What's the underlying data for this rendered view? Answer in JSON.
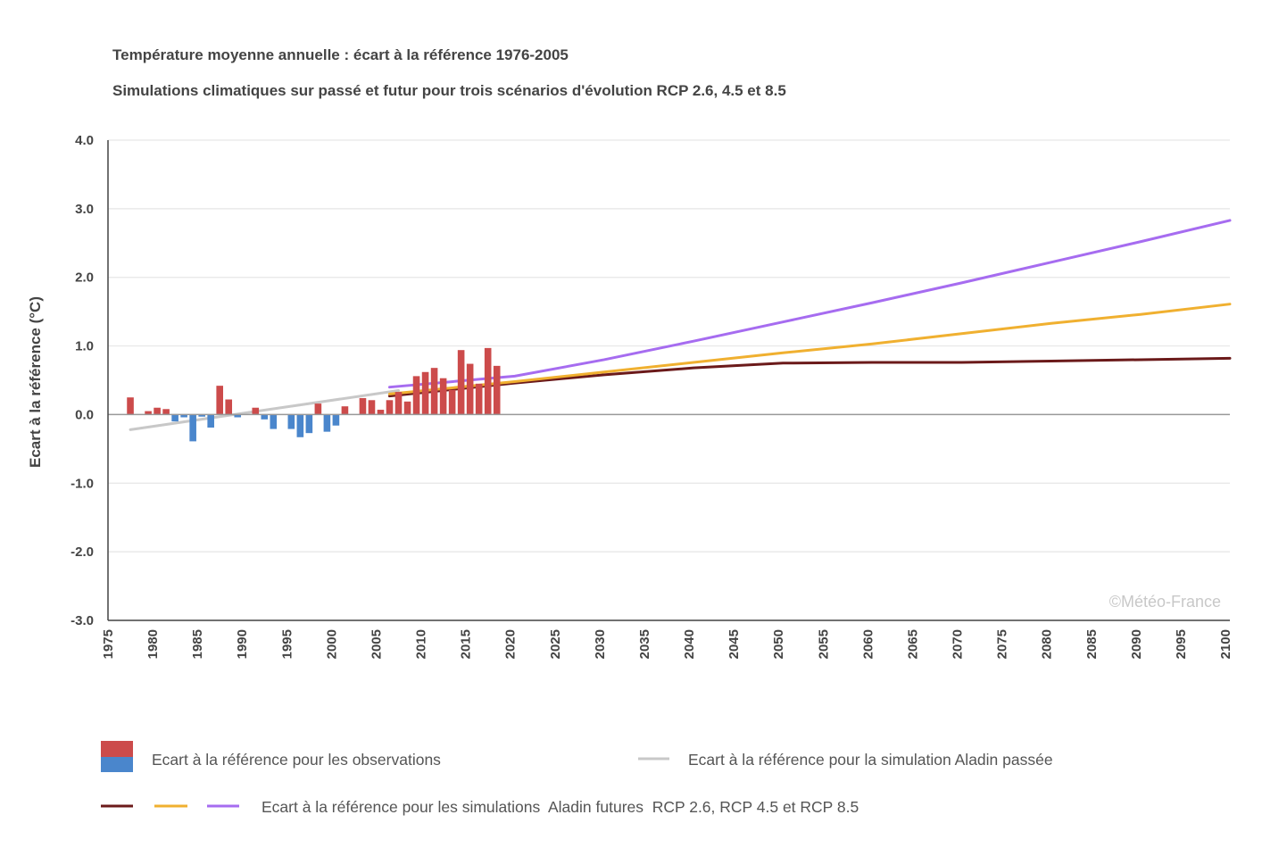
{
  "chart_data": {
    "type": "bar",
    "title": "Température moyenne annuelle : écart à la référence 1976-2005",
    "subtitle": "Simulations climatiques sur passé et futur pour trois scénarios d'évolution RCP 2.6, 4.5 et 8.5",
    "ylabel": "Ecart à la référence (°C)",
    "xlabel": "",
    "xlim": [
      1975,
      2100
    ],
    "ylim": [
      -3.0,
      4.0
    ],
    "yticks": [
      "4.0",
      "3.0",
      "2.0",
      "1.0",
      "0.0",
      "-1.0",
      "-2.0",
      "-3.0"
    ],
    "xticks": [
      "1975",
      "1980",
      "1985",
      "1990",
      "1995",
      "2000",
      "2005",
      "2010",
      "2015",
      "2020",
      "2025",
      "2030",
      "2035",
      "2040",
      "2045",
      "2050",
      "2055",
      "2060",
      "2065",
      "2070",
      "2075",
      "2080",
      "2085",
      "2090",
      "2095",
      "2100"
    ],
    "grid": true,
    "colors": {
      "positive": "#cc4b4b",
      "negative": "#4a86cc",
      "past_sim": "#c8c8c8",
      "rcp26": "#6b1a1a",
      "rcp45": "#f0b030",
      "rcp85": "#a66cf0"
    },
    "observations": {
      "years": [
        1977,
        1978,
        1979,
        1980,
        1981,
        1982,
        1983,
        1984,
        1985,
        1986,
        1987,
        1988,
        1989,
        1990,
        1991,
        1992,
        1993,
        1994,
        1995,
        1996,
        1997,
        1998,
        1999,
        2000,
        2001,
        2002,
        2003,
        2004,
        2005,
        2006,
        2007,
        2008,
        2009,
        2010,
        2011,
        2012,
        2013,
        2014,
        2015,
        2016,
        2017,
        2018
      ],
      "values": [
        0.25,
        0,
        0.05,
        0.1,
        0.08,
        -0.1,
        -0.04,
        -0.39,
        -0.03,
        -0.19,
        0.42,
        0.22,
        -0.04,
        0,
        0.1,
        -0.07,
        -0.21,
        0,
        -0.21,
        -0.33,
        -0.27,
        0.16,
        -0.25,
        -0.16,
        0.12,
        0,
        0.24,
        0.21,
        0.07,
        0.21,
        0.33,
        0.19,
        0.56,
        0.62,
        0.68,
        0.53,
        0.36,
        0.94,
        0.74,
        0.45,
        0.97,
        0.71
      ]
    },
    "series": [
      {
        "key": "past_sim",
        "x": [
          1977,
          2007
        ],
        "y": [
          -0.22,
          0.35
        ]
      },
      {
        "key": "rcp26",
        "x": [
          2006,
          2020,
          2030,
          2040,
          2050,
          2060,
          2070,
          2080,
          2090,
          2100
        ],
        "y": [
          0.27,
          0.46,
          0.58,
          0.68,
          0.75,
          0.76,
          0.76,
          0.78,
          0.8,
          0.82
        ]
      },
      {
        "key": "rcp45",
        "x": [
          2006,
          2020,
          2030,
          2040,
          2050,
          2060,
          2070,
          2080,
          2090,
          2100
        ],
        "y": [
          0.3,
          0.48,
          0.62,
          0.76,
          0.9,
          1.03,
          1.18,
          1.33,
          1.46,
          1.61
        ]
      },
      {
        "key": "rcp85",
        "x": [
          2006,
          2020,
          2030,
          2040,
          2050,
          2060,
          2070,
          2080,
          2090,
          2100
        ],
        "y": [
          0.4,
          0.56,
          0.8,
          1.07,
          1.35,
          1.63,
          1.92,
          2.22,
          2.52,
          2.83
        ]
      }
    ],
    "legend": {
      "placement": "bottom",
      "observations": "Ecart à la référence pour les observations",
      "past_sim": "Ecart à la référence pour la simulation Aladin  passée",
      "future_sim": "Ecart à la référence pour les simulations  Aladin futures  RCP 2.6, RCP 4.5 et RCP 8.5"
    },
    "watermark": "©Météo-France"
  }
}
